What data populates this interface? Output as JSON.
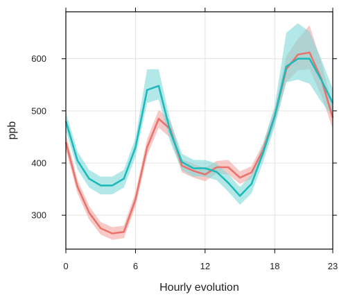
{
  "chart_data": {
    "type": "line",
    "title": "",
    "xlabel": "Hourly evolution",
    "ylabel": "ppb",
    "xlim": [
      0,
      23
    ],
    "ylim": [
      235,
      690
    ],
    "x_ticks": [
      0,
      6,
      12,
      18,
      23
    ],
    "x_tick_labels": [
      "0",
      "6",
      "12",
      "18",
      "23"
    ],
    "y_ticks": [
      300,
      400,
      500,
      600
    ],
    "y_tick_labels": [
      "300",
      "400",
      "500",
      "600"
    ],
    "grid": true,
    "legend": "none",
    "x": [
      0,
      1,
      2,
      3,
      4,
      5,
      6,
      7,
      8,
      9,
      10,
      11,
      12,
      13,
      14,
      15,
      16,
      17,
      18,
      19,
      20,
      21,
      22,
      23
    ],
    "series": [
      {
        "color": "#e8736c",
        "band_color": "#f4a7a2",
        "values": [
          440,
          355,
          305,
          275,
          265,
          268,
          330,
          430,
          485,
          465,
          395,
          385,
          378,
          392,
          392,
          372,
          382,
          425,
          490,
          580,
          608,
          612,
          562,
          487
        ],
        "lower": [
          425,
          342,
          292,
          263,
          253,
          256,
          316,
          414,
          468,
          448,
          382,
          372,
          365,
          380,
          378,
          360,
          370,
          412,
          476,
          555,
          578,
          580,
          530,
          466
        ],
        "upper": [
          455,
          368,
          318,
          287,
          277,
          280,
          344,
          446,
          502,
          482,
          408,
          398,
          391,
          404,
          406,
          384,
          394,
          438,
          504,
          605,
          638,
          664,
          594,
          508
        ]
      },
      {
        "color": "#1fb9ba",
        "band_color": "#7fd9d9",
        "values": [
          480,
          405,
          370,
          357,
          357,
          370,
          430,
          540,
          548,
          460,
          402,
          390,
          390,
          383,
          362,
          337,
          360,
          420,
          490,
          585,
          600,
          600,
          560,
          515
        ],
        "lower": [
          462,
          388,
          353,
          340,
          340,
          353,
          412,
          515,
          522,
          440,
          386,
          374,
          374,
          367,
          345,
          320,
          342,
          402,
          470,
          555,
          560,
          552,
          518,
          488
        ],
        "upper": [
          498,
          422,
          387,
          374,
          374,
          387,
          448,
          580,
          580,
          480,
          418,
          406,
          406,
          399,
          379,
          354,
          378,
          438,
          510,
          650,
          668,
          652,
          600,
          542
        ]
      }
    ]
  }
}
